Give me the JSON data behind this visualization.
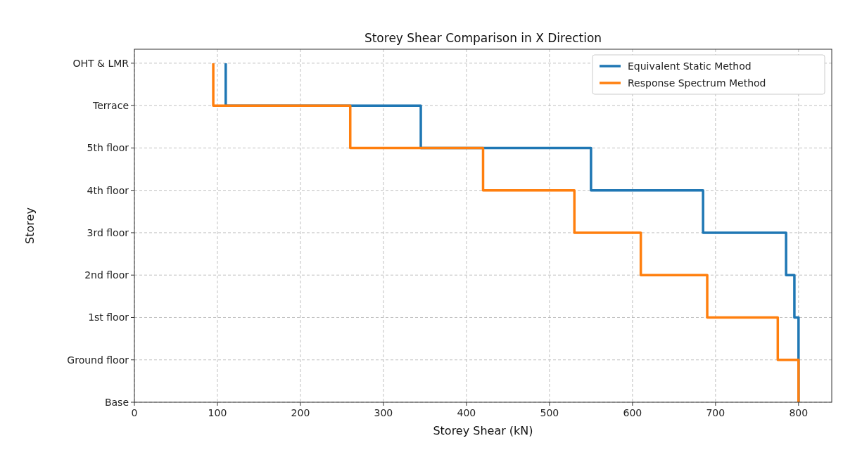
{
  "chart_data": {
    "type": "step",
    "orientation": "horizontal",
    "title": "Storey Shear Comparison in X Direction",
    "xlabel": "Storey Shear (kN)",
    "ylabel": "Storey",
    "categories": [
      "OHT & LMR",
      "Terrace",
      "5th floor",
      "4th floor",
      "3rd floor",
      "2nd floor",
      "1st floor",
      "Ground floor",
      "Base"
    ],
    "series": [
      {
        "name": "Equivalent Static Method",
        "color": "#1f77b4",
        "values": [
          110,
          345,
          550,
          685,
          785,
          795,
          800,
          800,
          800
        ]
      },
      {
        "name": "Response Spectrum Method",
        "color": "#ff7f0e",
        "values": [
          95,
          260,
          420,
          530,
          610,
          690,
          775,
          800,
          800
        ]
      }
    ],
    "xlim": [
      0,
      840
    ],
    "xticks": [
      0,
      100,
      200,
      300,
      400,
      500,
      600,
      700,
      800
    ],
    "grid": true,
    "legend": "top right"
  }
}
